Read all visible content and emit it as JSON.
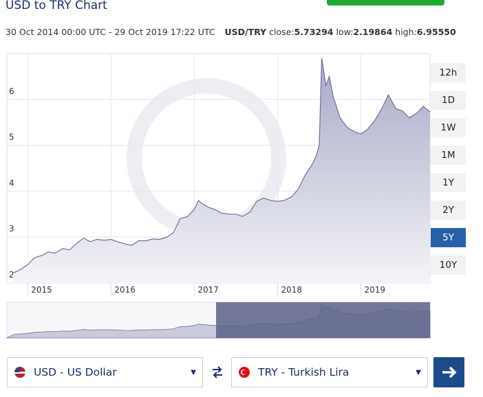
{
  "header": {
    "title": "USD to TRY Chart",
    "range": "30 Oct 2014 00:00 UTC - 29 Oct 2019 17:22 UTC",
    "pair": "USD/TRY",
    "close_label": "close:",
    "close": "5.73294",
    "low_label": "low:",
    "low": "2.19864",
    "high_label": "high:",
    "high": "6.95550"
  },
  "chart_data": {
    "type": "area",
    "color": "#6d7199",
    "x": [
      2014.83,
      2014.92,
      2015.0,
      2015.08,
      2015.17,
      2015.25,
      2015.33,
      2015.42,
      2015.5,
      2015.58,
      2015.67,
      2015.75,
      2015.83,
      2015.92,
      2016.0,
      2016.08,
      2016.17,
      2016.25,
      2016.33,
      2016.42,
      2016.5,
      2016.58,
      2016.67,
      2016.75,
      2016.83,
      2016.92,
      2017.0,
      2017.05,
      2017.08,
      2017.17,
      2017.25,
      2017.33,
      2017.42,
      2017.5,
      2017.58,
      2017.67,
      2017.75,
      2017.83,
      2017.92,
      2018.0,
      2018.08,
      2018.17,
      2018.25,
      2018.33,
      2018.42,
      2018.46,
      2018.5,
      2018.53,
      2018.58,
      2018.62,
      2018.67,
      2018.75,
      2018.83,
      2018.92,
      2019.0,
      2019.08,
      2019.17,
      2019.25,
      2019.33,
      2019.42,
      2019.5,
      2019.58,
      2019.67,
      2019.75,
      2019.83
    ],
    "values": [
      2.22,
      2.3,
      2.4,
      2.55,
      2.6,
      2.68,
      2.65,
      2.75,
      2.72,
      2.85,
      2.98,
      2.9,
      2.95,
      2.93,
      2.95,
      2.9,
      2.85,
      2.82,
      2.92,
      2.92,
      2.96,
      2.95,
      3.0,
      3.1,
      3.4,
      3.45,
      3.6,
      3.8,
      3.75,
      3.65,
      3.6,
      3.52,
      3.5,
      3.5,
      3.45,
      3.55,
      3.78,
      3.85,
      3.8,
      3.78,
      3.8,
      3.88,
      4.05,
      4.35,
      4.6,
      4.75,
      5.0,
      6.9,
      6.3,
      6.5,
      6.05,
      5.6,
      5.4,
      5.3,
      5.25,
      5.35,
      5.55,
      5.8,
      6.1,
      5.8,
      5.75,
      5.6,
      5.7,
      5.85,
      5.73
    ],
    "xlim": [
      2014.75,
      2019.83
    ],
    "xticks": [
      2015,
      2016,
      2017,
      2018,
      2019
    ],
    "ylim": [
      2,
      7
    ],
    "yticks": [
      2,
      3,
      4,
      5,
      6
    ],
    "grid": true
  },
  "range_buttons": [
    "12h",
    "1D",
    "1W",
    "1M",
    "1Y",
    "2Y",
    "5Y",
    "10Y"
  ],
  "active_range": "5Y",
  "from_currency": "USD - US Dollar",
  "to_currency": "TRY - Turkish Lira"
}
